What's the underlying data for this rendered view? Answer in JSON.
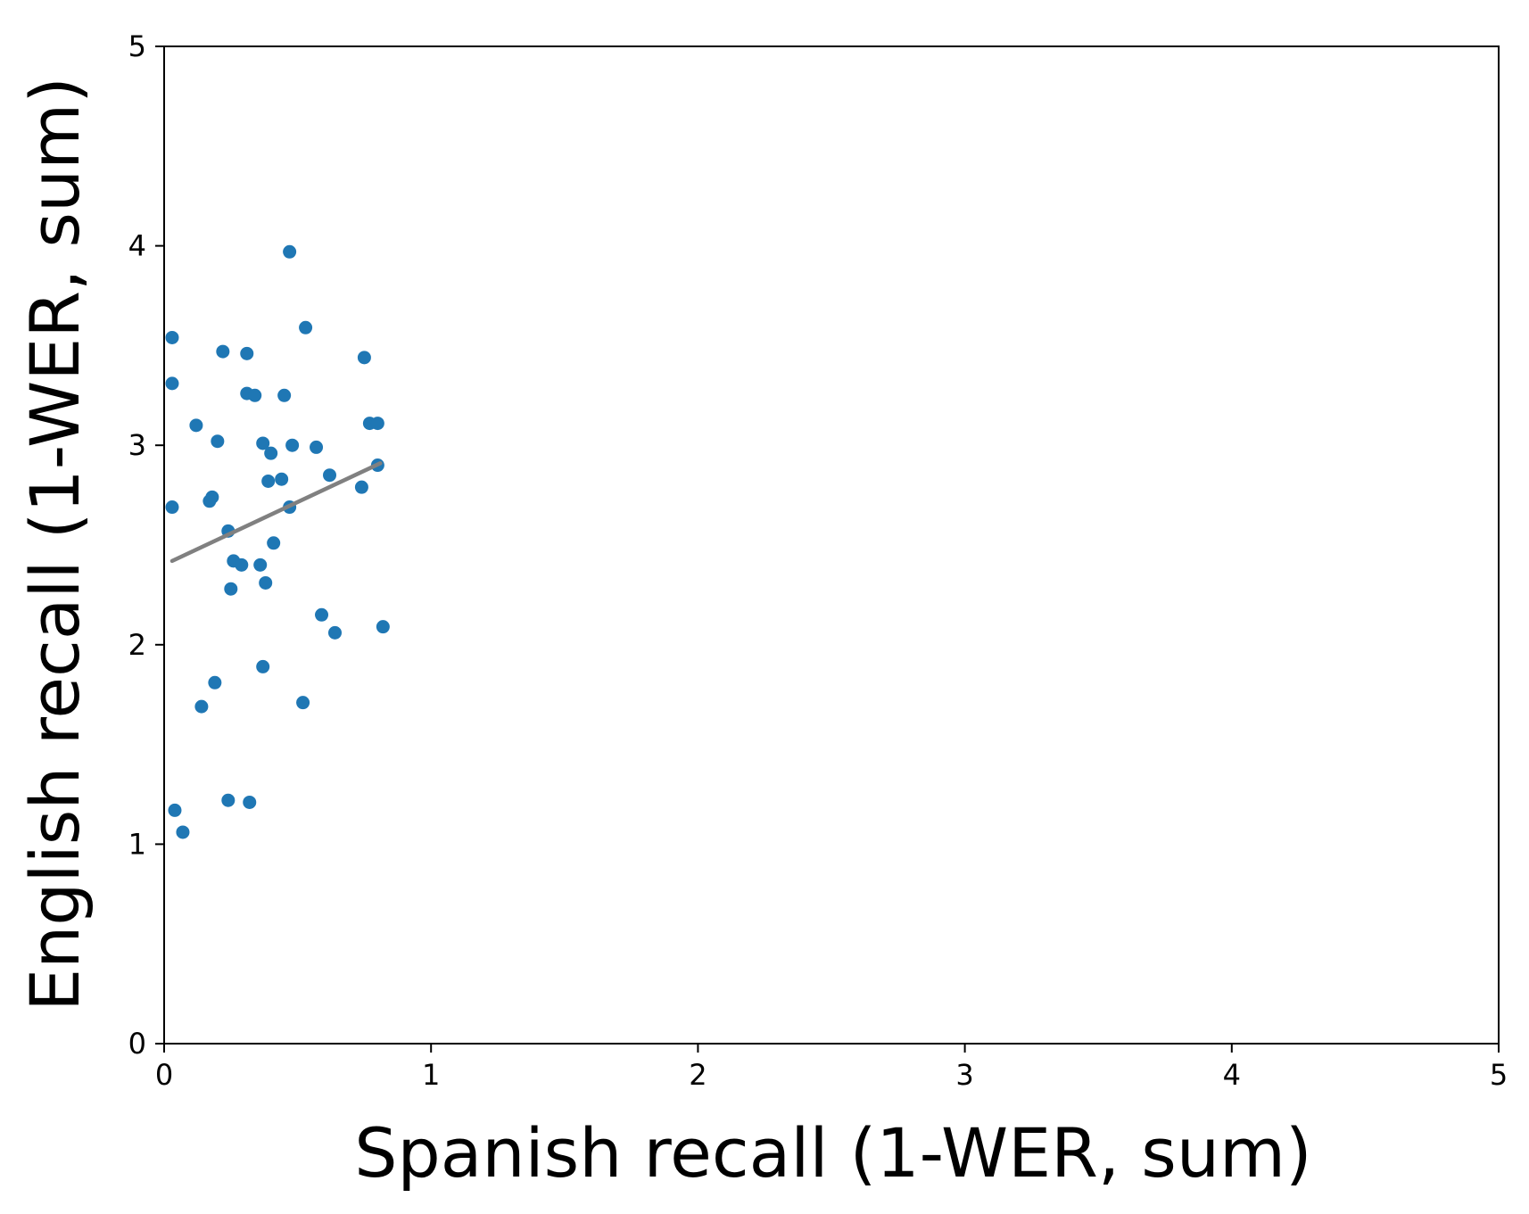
{
  "chart_data": {
    "type": "scatter",
    "title": "",
    "xlabel": "Spanish recall (1-WER, sum)",
    "ylabel": "English recall (1-WER, sum)",
    "xlim": [
      0,
      5
    ],
    "ylim": [
      0,
      5
    ],
    "xticks": [
      "0",
      "1",
      "2",
      "3",
      "4",
      "5"
    ],
    "yticks": [
      "0",
      "1",
      "2",
      "3",
      "4",
      "5"
    ],
    "grid": false,
    "colors": {
      "points": "#1f77b4",
      "trend": "#808080",
      "axes": "#000000"
    },
    "series": [
      {
        "points": [
          [
            0.47,
            3.97
          ],
          [
            0.53,
            3.59
          ],
          [
            0.03,
            3.54
          ],
          [
            0.22,
            3.47
          ],
          [
            0.31,
            3.46
          ],
          [
            0.75,
            3.44
          ],
          [
            0.03,
            3.31
          ],
          [
            0.31,
            3.26
          ],
          [
            0.34,
            3.25
          ],
          [
            0.45,
            3.25
          ],
          [
            0.12,
            3.1
          ],
          [
            0.77,
            3.11
          ],
          [
            0.8,
            3.11
          ],
          [
            0.2,
            3.02
          ],
          [
            0.37,
            3.01
          ],
          [
            0.48,
            3.0
          ],
          [
            0.57,
            2.99
          ],
          [
            0.4,
            2.96
          ],
          [
            0.8,
            2.9
          ],
          [
            0.62,
            2.85
          ],
          [
            0.39,
            2.82
          ],
          [
            0.44,
            2.83
          ],
          [
            0.74,
            2.79
          ],
          [
            0.18,
            2.74
          ],
          [
            0.17,
            2.72
          ],
          [
            0.03,
            2.69
          ],
          [
            0.47,
            2.69
          ],
          [
            0.24,
            2.57
          ],
          [
            0.41,
            2.51
          ],
          [
            0.26,
            2.42
          ],
          [
            0.29,
            2.4
          ],
          [
            0.36,
            2.4
          ],
          [
            0.38,
            2.31
          ],
          [
            0.25,
            2.28
          ],
          [
            0.59,
            2.15
          ],
          [
            0.82,
            2.09
          ],
          [
            0.64,
            2.06
          ],
          [
            0.37,
            1.89
          ],
          [
            0.19,
            1.81
          ],
          [
            0.52,
            1.71
          ],
          [
            0.14,
            1.69
          ],
          [
            0.24,
            1.22
          ],
          [
            0.32,
            1.21
          ],
          [
            0.04,
            1.17
          ],
          [
            0.07,
            1.06
          ]
        ]
      }
    ],
    "trendline": {
      "x": [
        0.03,
        0.81
      ],
      "y": [
        2.42,
        2.91
      ]
    }
  }
}
